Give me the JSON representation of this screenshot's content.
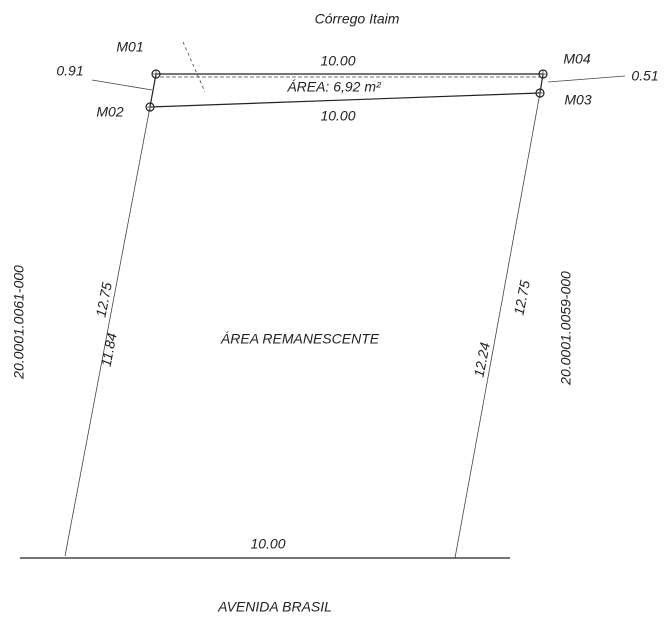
{
  "header": {
    "stream": "Córrego Itaim",
    "street": "AVENIDA BRASIL"
  },
  "points": {
    "m01": "M01",
    "m02": "M02",
    "m03": "M03",
    "m04": "M04"
  },
  "dimensions": {
    "top_outer": "10.00",
    "top_inner": "10.00",
    "bottom": "10.00",
    "left_offset": "0.91",
    "right_offset": "0.51",
    "left_outer": "12.75",
    "left_inner": "11.84",
    "right_outer": "12.75",
    "right_inner": "12.24"
  },
  "areas": {
    "strip": "ÁREA: 6,92 m²",
    "remainder": "ÁREA  REMANESCENTE"
  },
  "neighbors": {
    "left": "20.0001.0061-000",
    "right": "20.0001.0059-000"
  }
}
